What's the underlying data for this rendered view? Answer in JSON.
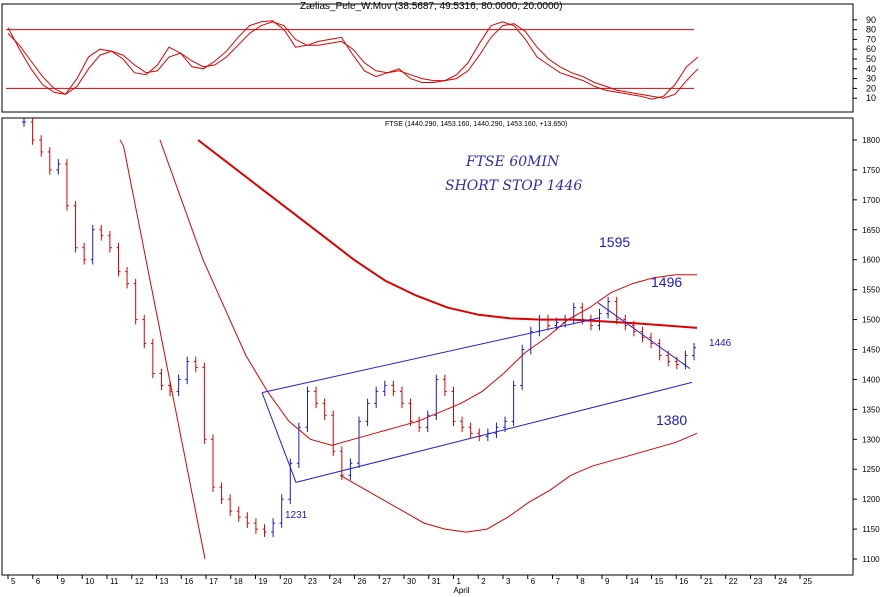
{
  "indicator": {
    "title": "Zælias_Pele_W.Mov (38.5687, 49.5316, 80.0000, 20.0000)",
    "axis_ticks": [
      "90",
      "80",
      "70",
      "60",
      "50",
      "40",
      "30",
      "20",
      "10"
    ],
    "upper_level": 80,
    "lower_level": 20
  },
  "main": {
    "header": "FTSE (1440.290, 1453.160, 1440.290, 1453.160, +13.650)",
    "note_line1": "FTSE 60MIN",
    "note_line2": "SHORT STOP 1446",
    "price_ticks": [
      "1800",
      "1750",
      "1700",
      "1650",
      "1600",
      "1550",
      "1500",
      "1450",
      "1400",
      "1350",
      "1300",
      "1250",
      "1200",
      "1150",
      "1100"
    ]
  },
  "annotations": {
    "level_1595": "1595",
    "level_1496": "1496",
    "level_1446": "1446",
    "level_1380": "1380",
    "level_1231": "1231"
  },
  "colors": {
    "bull": "#1a1acc",
    "bear": "#e00000",
    "levels": "#e00000",
    "trendline": "#2020dd",
    "grid": "#000000"
  },
  "chart_data": [
    {
      "type": "line",
      "title": "Zælias_Pele_W.Mov (38.5687, 49.5316, 80.0000, 20.0000)",
      "ylim": [
        0,
        100
      ],
      "horizontal_levels": [
        80,
        20
      ],
      "series": [
        {
          "values": [
            82,
            60,
            40,
            24,
            16,
            14,
            30,
            52,
            60,
            58,
            50,
            36,
            34,
            44,
            62,
            56,
            42,
            40,
            48,
            58,
            72,
            84,
            88,
            89,
            80,
            62,
            64,
            68,
            70,
            72,
            54,
            38,
            32,
            36,
            40,
            30,
            26,
            26,
            28,
            34,
            46,
            66,
            84,
            88,
            84,
            70,
            52,
            44,
            36,
            32,
            28,
            22,
            18,
            16,
            14,
            12,
            9,
            12,
            24,
            42,
            52
          ]
        },
        {
          "values": [
            76,
            64,
            48,
            32,
            20,
            14,
            22,
            40,
            54,
            58,
            54,
            44,
            36,
            38,
            52,
            56,
            48,
            42,
            44,
            52,
            64,
            76,
            84,
            88,
            84,
            70,
            64,
            64,
            66,
            68,
            60,
            46,
            38,
            36,
            38,
            34,
            30,
            28,
            28,
            30,
            38,
            54,
            72,
            84,
            86,
            78,
            62,
            50,
            42,
            36,
            32,
            26,
            22,
            18,
            16,
            14,
            12,
            10,
            14,
            28,
            40
          ]
        }
      ]
    },
    {
      "type": "line",
      "title": "FTSE (1440.290, 1453.160, 1440.290, 1453.160, +13.650)",
      "ylim": [
        1080,
        1830
      ],
      "x_tick_labels": [
        "5",
        "6",
        "9",
        "10",
        "11",
        "12",
        "13",
        "16",
        "17",
        "18",
        "19",
        "20",
        "23",
        "24",
        "26",
        "27",
        "30",
        "31",
        "1",
        "2",
        "3",
        "6",
        "7",
        "8",
        "9",
        "14",
        "15",
        "16",
        "21",
        "22",
        "23",
        "24",
        "25"
      ],
      "x_subtitle": "April",
      "series": [
        {
          "values": [
            1830,
            1800,
            1780,
            1750,
            1760,
            1690,
            1620,
            1600,
            1650,
            1640,
            1620,
            1580,
            1560,
            1500,
            1460,
            1410,
            1390,
            1380,
            1400,
            1430,
            1420,
            1300,
            1220,
            1200,
            1180,
            1170,
            1160,
            1150,
            1145,
            1160,
            1200,
            1260,
            1320,
            1380,
            1360,
            1340,
            1280,
            1240,
            1260,
            1330,
            1360,
            1380,
            1390,
            1380,
            1360,
            1330,
            1320,
            1340,
            1400,
            1380,
            1330,
            1320,
            1310,
            1305,
            1310,
            1320,
            1330,
            1390,
            1450,
            1480,
            1500,
            1490,
            1495,
            1500,
            1520,
            1500,
            1490,
            1510,
            1530,
            1500,
            1490,
            1480,
            1470,
            1460,
            1440,
            1430,
            1425,
            1440,
            1453
          ]
        },
        {
          "values": [
            1800,
            1790,
            1760,
            1730,
            1700,
            1670,
            1640,
            1610,
            1580,
            1550,
            1520,
            1490,
            1460,
            1430,
            1400,
            1370,
            1340,
            1310,
            1280,
            1250,
            1220,
            1190,
            1160,
            1130,
            1100
          ]
        },
        {
          "values": [
            1800,
            1700,
            1600,
            1520,
            1440,
            1380,
            1330,
            1300,
            1290,
            1300,
            1310,
            1320,
            1330,
            1345,
            1360,
            1380,
            1410,
            1445,
            1470,
            1500,
            1520,
            1545,
            1560,
            1570,
            1575,
            1575
          ]
        },
        {
          "values": [
            1240,
            1220,
            1200,
            1180,
            1160,
            1150,
            1145,
            1150,
            1170,
            1195,
            1215,
            1240,
            1255,
            1265,
            1275,
            1285,
            1295,
            1310
          ]
        },
        {
          "values": [
            1800,
            1760,
            1720,
            1680,
            1640,
            1600,
            1565,
            1540,
            1520,
            1508,
            1502,
            1500,
            1500,
            1497,
            1494,
            1490,
            1486
          ]
        }
      ],
      "trendlines": [
        {
          "from": [
            20,
            1378
          ],
          "to": [
            15,
            1505
          ]
        },
        {
          "from": [
            23,
            1228
          ],
          "to": [
            23,
            1395
          ]
        },
        {
          "from": [
            14,
            1530
          ],
          "to": [
            23,
            1415
          ]
        }
      ]
    }
  ]
}
